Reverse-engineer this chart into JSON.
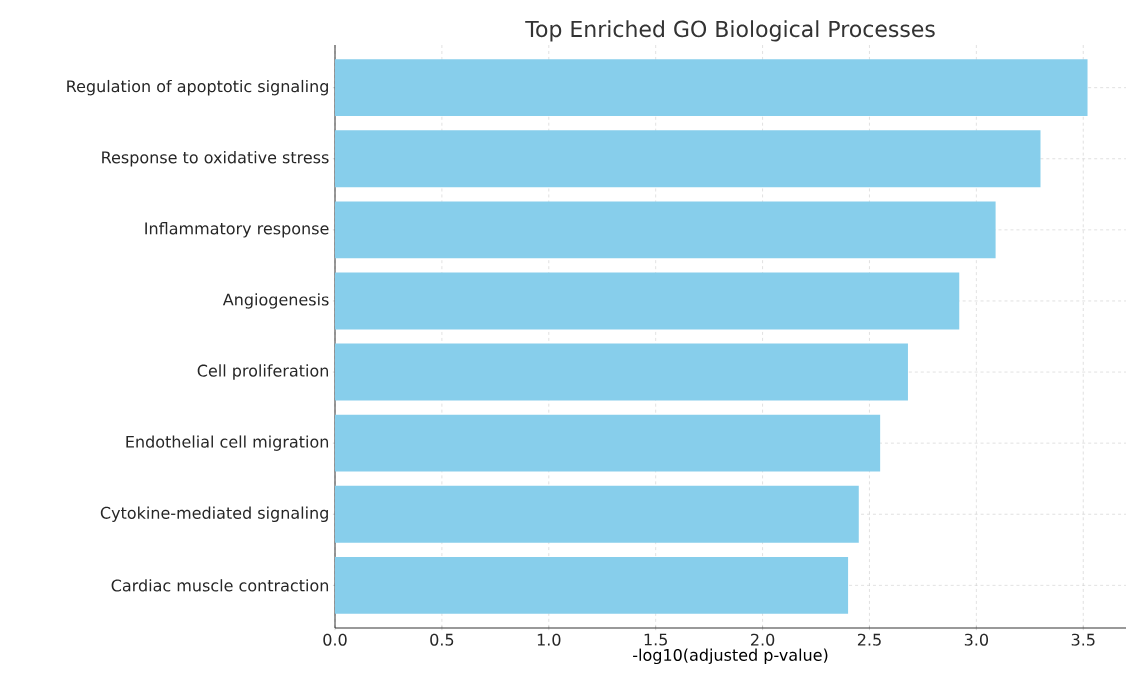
{
  "chart_data": {
    "type": "bar",
    "orientation": "horizontal",
    "title": "Top Enriched GO Biological Processes",
    "xlabel": "-log10(adjusted p-value)",
    "categories": [
      "Regulation of apoptotic signaling",
      "Response to oxidative stress",
      "Inflammatory response",
      "Angiogenesis",
      "Cell proliferation",
      "Endothelial cell migration",
      "Cytokine-mediated signaling",
      "Cardiac muscle contraction"
    ],
    "values": [
      3.52,
      3.3,
      3.09,
      2.92,
      2.68,
      2.55,
      2.45,
      2.4
    ],
    "color": "#87ceeb",
    "xlim": [
      0,
      3.7
    ],
    "xticks": [
      {
        "value": 0,
        "label": "0.0"
      },
      0.5,
      {
        "value": 1,
        "label": "1.0"
      },
      1.5,
      {
        "value": 2,
        "label": "2.0"
      },
      2.5,
      {
        "value": 3,
        "label": "3.0"
      },
      3.5
    ],
    "grid": true
  }
}
